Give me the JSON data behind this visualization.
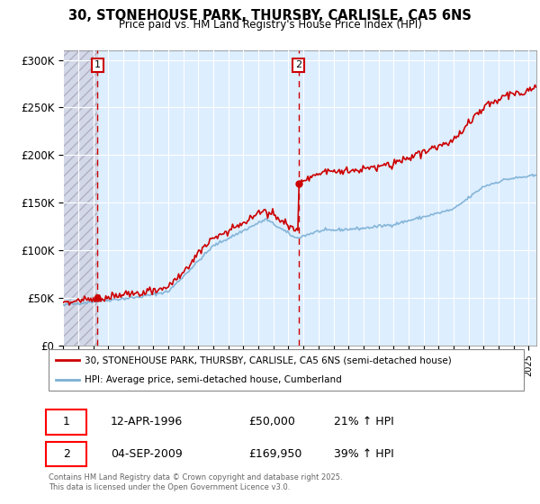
{
  "title": "30, STONEHOUSE PARK, THURSBY, CARLISLE, CA5 6NS",
  "subtitle": "Price paid vs. HM Land Registry's House Price Index (HPI)",
  "legend_line1": "30, STONEHOUSE PARK, THURSBY, CARLISLE, CA5 6NS (semi-detached house)",
  "legend_line2": "HPI: Average price, semi-detached house, Cumberland",
  "annotation1_date": "12-APR-1996",
  "annotation1_price": "£50,000",
  "annotation1_hpi": "21% ↑ HPI",
  "annotation2_date": "04-SEP-2009",
  "annotation2_price": "£169,950",
  "annotation2_hpi": "39% ↑ HPI",
  "footnote": "Contains HM Land Registry data © Crown copyright and database right 2025.\nThis data is licensed under the Open Government Licence v3.0.",
  "ylim": [
    0,
    310000
  ],
  "yticks": [
    0,
    50000,
    100000,
    150000,
    200000,
    250000,
    300000
  ],
  "ytick_labels": [
    "£0",
    "£50K",
    "£100K",
    "£150K",
    "£200K",
    "£250K",
    "£300K"
  ],
  "price_color": "#cc0000",
  "hpi_color": "#7bafd4",
  "background_color": "#ddeeff",
  "vline_color": "#cc0000",
  "sale1_x": 1996.28,
  "sale1_y": 50000,
  "sale2_x": 2009.67,
  "sale2_y": 169950,
  "xmin": 1994,
  "xmax": 2025.5
}
